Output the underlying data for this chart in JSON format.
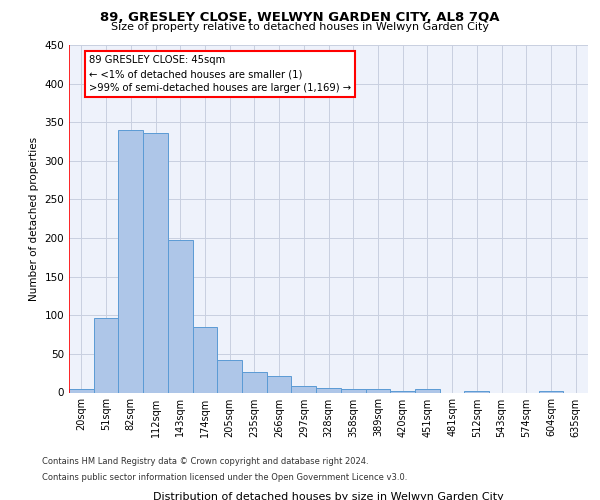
{
  "title": "89, GRESLEY CLOSE, WELWYN GARDEN CITY, AL8 7QA",
  "subtitle": "Size of property relative to detached houses in Welwyn Garden City",
  "xlabel": "Distribution of detached houses by size in Welwyn Garden City",
  "ylabel": "Number of detached properties",
  "bar_color": "#aec6e8",
  "bar_edge_color": "#5b9bd5",
  "categories": [
    "20sqm",
    "51sqm",
    "82sqm",
    "112sqm",
    "143sqm",
    "174sqm",
    "205sqm",
    "235sqm",
    "266sqm",
    "297sqm",
    "328sqm",
    "358sqm",
    "389sqm",
    "420sqm",
    "451sqm",
    "481sqm",
    "512sqm",
    "543sqm",
    "574sqm",
    "604sqm",
    "635sqm"
  ],
  "values": [
    5,
    97,
    340,
    336,
    197,
    85,
    42,
    26,
    22,
    9,
    6,
    5,
    4,
    2,
    4,
    0,
    2,
    0,
    0,
    2,
    0
  ],
  "ylim": [
    0,
    450
  ],
  "yticks": [
    0,
    50,
    100,
    150,
    200,
    250,
    300,
    350,
    400,
    450
  ],
  "annotation_box_text": "89 GRESLEY CLOSE: 45sqm\n← <1% of detached houses are smaller (1)\n>99% of semi-detached houses are larger (1,169) →",
  "footer_line1": "Contains HM Land Registry data © Crown copyright and database right 2024.",
  "footer_line2": "Contains public sector information licensed under the Open Government Licence v3.0.",
  "bg_color": "#eef2fb",
  "grid_color": "#c8cfe0",
  "red_line_x": -0.5
}
